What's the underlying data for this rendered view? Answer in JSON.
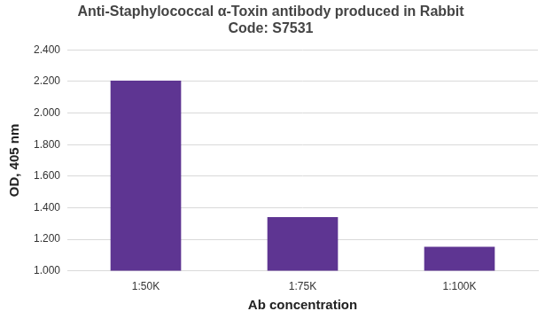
{
  "chart_data": {
    "type": "bar",
    "title": "Anti-Staphylococcal α-Toxin antibody produced in Rabbit",
    "subtitle": "Code: S7531",
    "x_label": "Ab concentration",
    "y_label": "OD, 405 nm",
    "categories": [
      "1:50K",
      "1:75K",
      "1:100K"
    ],
    "values": [
      2.205,
      1.34,
      1.152
    ],
    "color": "#5e3592",
    "ylim": [
      1.0,
      2.4
    ],
    "yticks": [
      {
        "value": 1.0,
        "label": "1.000"
      },
      {
        "value": 1.2,
        "label": "1.200"
      },
      {
        "value": 1.4,
        "label": "1.400"
      },
      {
        "value": 1.6,
        "label": "1.600"
      },
      {
        "value": 1.8,
        "label": "1.800"
      },
      {
        "value": 2.0,
        "label": "2.000"
      },
      {
        "value": 2.2,
        "label": "2.200"
      },
      {
        "value": 2.4,
        "label": "2.400"
      }
    ],
    "grid": true
  }
}
